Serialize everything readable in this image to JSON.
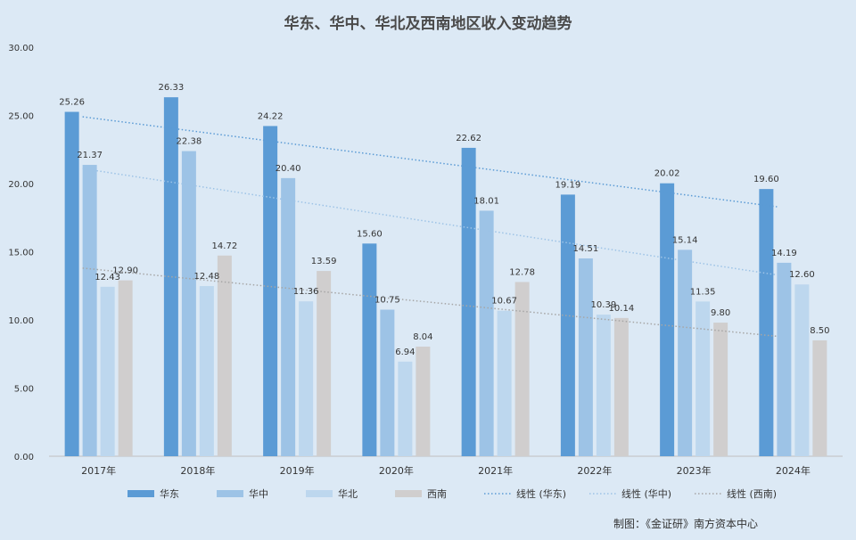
{
  "chart_data": {
    "type": "bar",
    "title": "华东、华中、华北及西南地区收入变动趋势",
    "xlabel": "",
    "ylabel": "",
    "ylim": [
      0,
      30
    ],
    "yticks": [
      "0.00",
      "5.00",
      "10.00",
      "15.00",
      "20.00",
      "25.00",
      "30.00"
    ],
    "grid": false,
    "legend_position": "bottom",
    "categories": [
      "2017年",
      "2018年",
      "2019年",
      "2020年",
      "2021年",
      "2022年",
      "2023年",
      "2024年"
    ],
    "series": [
      {
        "name": "华东",
        "color": "#5b9bd5",
        "values": [
          25.26,
          26.33,
          24.22,
          15.6,
          22.62,
          19.19,
          20.02,
          19.6
        ],
        "labels": [
          "25.26",
          "26.33",
          "24.22",
          "15.60",
          "22.62",
          "19.19",
          "20.02",
          "19.60"
        ]
      },
      {
        "name": "华中",
        "color": "#9dc3e6",
        "values": [
          21.37,
          22.38,
          20.4,
          10.75,
          18.01,
          14.51,
          15.14,
          14.19
        ],
        "labels": [
          "21.37",
          "22.38",
          "20.40",
          "10.75",
          "18.01",
          "14.51",
          "15.14",
          "14.19"
        ]
      },
      {
        "name": "华北",
        "color": "#bdd7ee",
        "values": [
          12.43,
          12.48,
          11.36,
          6.94,
          10.67,
          10.39,
          11.35,
          12.6
        ],
        "labels": [
          "12.43",
          "12.48",
          "11.36",
          "6.94",
          "10.67",
          "10.39",
          "11.35",
          "12.60"
        ]
      },
      {
        "name": "西南",
        "color": "#d0cece",
        "values": [
          12.9,
          14.72,
          13.59,
          8.04,
          12.78,
          10.14,
          9.8,
          8.5
        ],
        "labels": [
          "12.90",
          "14.72",
          "13.59",
          "8.04",
          "12.78",
          "10.14",
          "9.80",
          "8.50"
        ]
      }
    ],
    "trendlines": [
      {
        "name": "线性 (华东)",
        "series": "华东",
        "color": "#5b9bd5",
        "start": 24.9,
        "end": 18.3
      },
      {
        "name": "线性 (华中)",
        "series": "华中",
        "color": "#9dc3e6",
        "start": 21.1,
        "end": 13.3
      },
      {
        "name": "线性 (西南)",
        "series": "西南",
        "color": "#a6a6a6",
        "start": 13.8,
        "end": 8.8
      }
    ]
  },
  "footer": {
    "credit": "制图：《金证研》南方资本中心"
  }
}
